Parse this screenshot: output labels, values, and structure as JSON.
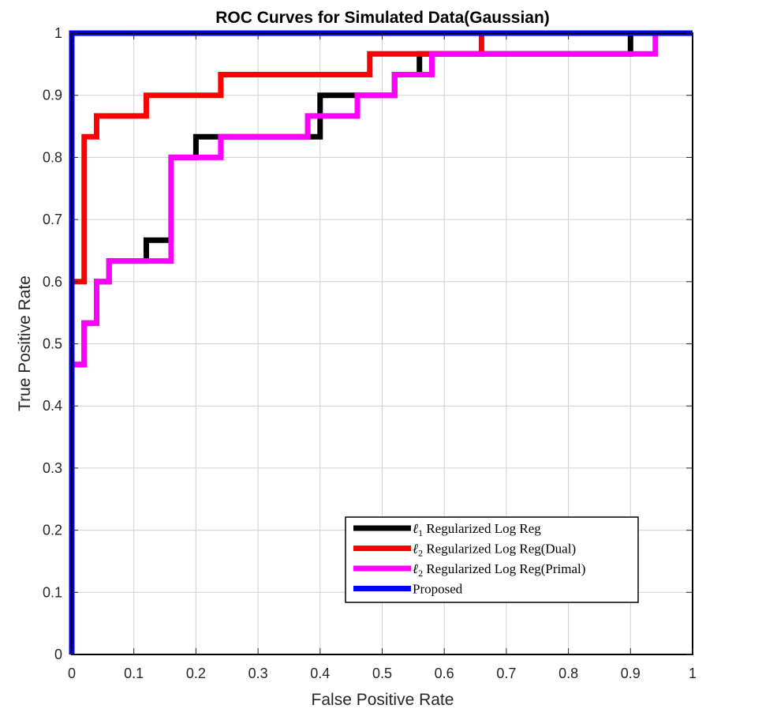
{
  "chart_data": {
    "type": "line",
    "title": "ROC Curves for Simulated Data(Gaussian)",
    "xlabel": "False Positive Rate",
    "ylabel": "True Positive Rate",
    "xlim": [
      0,
      1
    ],
    "ylim": [
      0,
      1
    ],
    "grid": true,
    "legend_position": "bottom-right",
    "x_ticks": [
      0,
      0.1,
      0.2,
      0.3,
      0.4,
      0.5,
      0.6,
      0.7,
      0.8,
      0.9,
      1
    ],
    "x_tick_labels": [
      "0",
      "0.1",
      "0.2",
      "0.3",
      "0.4",
      "0.5",
      "0.6",
      "0.7",
      "0.8",
      "0.9",
      "1"
    ],
    "y_ticks": [
      0,
      0.1,
      0.2,
      0.3,
      0.4,
      0.5,
      0.6,
      0.7,
      0.8,
      0.9,
      1
    ],
    "y_tick_labels": [
      "0",
      "0.1",
      "0.2",
      "0.3",
      "0.4",
      "0.5",
      "0.6",
      "0.7",
      "0.8",
      "0.9",
      "1"
    ],
    "series": [
      {
        "name": "ℓ1 Regularized Log Reg",
        "legend_main": "ℓ",
        "legend_sub": "1",
        "legend_rest": " Regularized Log Reg",
        "color": "#000000",
        "x": [
          0,
          0,
          0.02,
          0.02,
          0.04,
          0.04,
          0.06,
          0.06,
          0.12,
          0.12,
          0.16,
          0.16,
          0.2,
          0.2,
          0.24,
          0.24,
          0.38,
          0.38,
          0.4,
          0.4,
          0.46,
          0.46,
          0.52,
          0.52,
          0.56,
          0.56,
          0.9,
          0.9,
          1
        ],
        "y": [
          0,
          0.4667,
          0.4667,
          0.5333,
          0.5333,
          0.6,
          0.6,
          0.6333,
          0.6333,
          0.6667,
          0.6667,
          0.8,
          0.8,
          0.8333,
          0.8333,
          0.8333,
          0.8333,
          0.8333,
          0.8333,
          0.9,
          0.9,
          0.9,
          0.9,
          0.9333,
          0.9333,
          0.9667,
          0.9667,
          1,
          1
        ]
      },
      {
        "name": "ℓ2 Regularized Log Reg(Dual)",
        "legend_main": "ℓ",
        "legend_sub": "2",
        "legend_rest": " Regularized Log Reg(Dual)",
        "color": "#ff0000",
        "x": [
          0,
          0,
          0.02,
          0.02,
          0.04,
          0.04,
          0.12,
          0.12,
          0.24,
          0.24,
          0.48,
          0.48,
          0.66,
          0.66,
          1
        ],
        "y": [
          0,
          0.6,
          0.6,
          0.8333,
          0.8333,
          0.8667,
          0.8667,
          0.9,
          0.9,
          0.9333,
          0.9333,
          0.9667,
          0.9667,
          1,
          1
        ]
      },
      {
        "name": "ℓ2 Regularized Log Reg(Primal)",
        "legend_main": "ℓ",
        "legend_sub": "2",
        "legend_rest": " Regularized Log Reg(Primal)",
        "color": "#ff00ff",
        "x": [
          0,
          0,
          0.02,
          0.02,
          0.04,
          0.04,
          0.06,
          0.06,
          0.16,
          0.16,
          0.24,
          0.24,
          0.38,
          0.38,
          0.46,
          0.46,
          0.52,
          0.52,
          0.58,
          0.58,
          0.94,
          0.94,
          1
        ],
        "y": [
          0,
          0.4667,
          0.4667,
          0.5333,
          0.5333,
          0.6,
          0.6,
          0.6333,
          0.6333,
          0.8,
          0.8,
          0.8333,
          0.8333,
          0.8667,
          0.8667,
          0.9,
          0.9,
          0.9333,
          0.9333,
          0.9667,
          0.9667,
          1,
          1
        ]
      },
      {
        "name": "Proposed",
        "legend_main": "Proposed",
        "legend_sub": "",
        "legend_rest": "",
        "color": "#0000ff",
        "x": [
          0,
          0,
          1
        ],
        "y": [
          0,
          1,
          1
        ]
      }
    ]
  }
}
